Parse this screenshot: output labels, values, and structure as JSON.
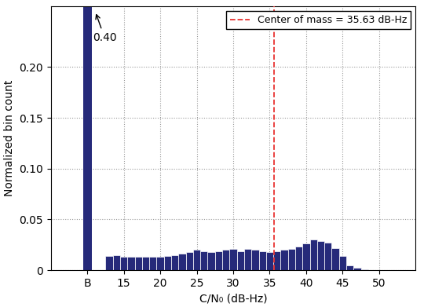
{
  "chart_data": {
    "type": "histogram",
    "x_label": "C/N₀ (dB-Hz)",
    "y_label": "Normalized bin count",
    "bins": [
      12.5,
      13.5,
      14.5,
      15.5,
      16.5,
      17.5,
      18.5,
      19.5,
      20.5,
      21.5,
      22.5,
      23.5,
      24.5,
      25.5,
      26.5,
      27.5,
      28.5,
      29.5,
      30.5,
      31.5,
      32.5,
      33.5,
      34.5,
      35.5,
      36.5,
      37.5,
      38.5,
      39.5,
      40.5,
      41.5,
      42.5,
      43.5,
      44.5,
      45.5,
      46.5,
      47.5,
      48.5
    ],
    "counts": [
      0.014,
      0.015,
      0.013,
      0.013,
      0.013,
      0.013,
      0.013,
      0.013,
      0.014,
      0.015,
      0.016,
      0.018,
      0.02,
      0.019,
      0.018,
      0.019,
      0.02,
      0.021,
      0.019,
      0.021,
      0.02,
      0.019,
      0.018,
      0.019,
      0.02,
      0.021,
      0.023,
      0.026,
      0.03,
      0.029,
      0.027,
      0.022,
      0.014,
      0.005,
      0.002,
      0.001
    ],
    "extra_bar": {
      "x": 10,
      "values": [
        0.4
      ],
      "value_labels": [
        "0.40"
      ]
    },
    "color": "#262a7a",
    "center_of_mass": {
      "name": "Center of mass = 35.63 dB-Hz",
      "value": 35.63,
      "color": "#e8312f",
      "line_style": "dashed"
    },
    "legend": "upper right",
    "xlim": [
      5,
      55
    ],
    "ylim": [
      0,
      0.26
    ],
    "xticks": [
      {
        "value": 10,
        "label": "B"
      },
      15,
      20,
      25,
      30,
      35,
      40,
      45,
      50
    ],
    "yticks": [
      0,
      0.05,
      {
        "value": 0.1,
        "label": "0.10"
      },
      0.15,
      {
        "value": 0.2,
        "label": "0.20"
      }
    ],
    "grid": true
  }
}
